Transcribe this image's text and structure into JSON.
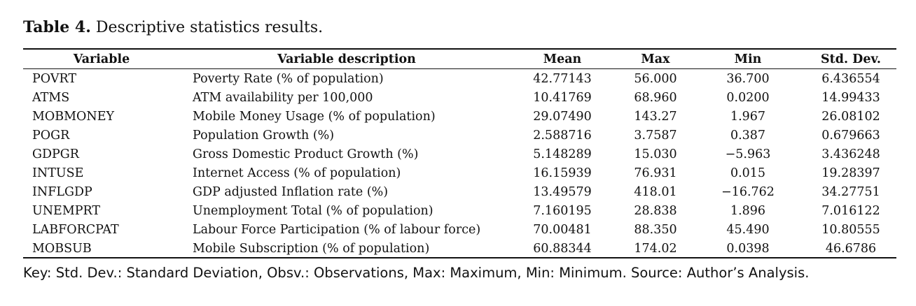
{
  "title": {
    "label": "Table 4.",
    "text": "Descriptive statistics results."
  },
  "table": {
    "header": [
      "Variable",
      "Variable description",
      "Mean",
      "Max",
      "Min",
      "Std. Dev."
    ],
    "rows": [
      [
        "POVRT",
        "Poverty Rate (% of population)",
        "42.77143",
        "56.000",
        "36.700",
        "6.436554"
      ],
      [
        "ATMS",
        "ATM availability per 100,000",
        "10.41769",
        "68.960",
        "0.0200",
        "14.99433"
      ],
      [
        "MOBMONEY",
        "Mobile Money Usage (% of population)",
        "29.07490",
        "143.27",
        "1.967",
        "26.08102"
      ],
      [
        "POGR",
        "Population Growth (%)",
        "2.588716",
        "3.7587",
        "0.387",
        "0.679663"
      ],
      [
        "GDPGR",
        "Gross Domestic Product Growth (%)",
        "5.148289",
        "15.030",
        "−5.963",
        "3.436248"
      ],
      [
        "INTUSE",
        "Internet Access (% of population)",
        "16.15939",
        "76.931",
        "0.015",
        "19.28397"
      ],
      [
        "INFLGDP",
        "GDP adjusted Inflation rate (%)",
        "13.49579",
        "418.01",
        "−16.762",
        "34.27751"
      ],
      [
        "UNEMPRT",
        "Unemployment Total (% of population)",
        "7.160195",
        "28.838",
        "1.896",
        "7.016122"
      ],
      [
        "LABFORCPAT",
        "Labour Force Participation (% of labour force)",
        "70.00481",
        "88.350",
        "45.490",
        "10.80555"
      ],
      [
        "MOBSUB",
        "Mobile Subscription (% of population)",
        "60.88344",
        "174.02",
        "0.0398",
        "46.6786"
      ]
    ]
  },
  "note": "Key: Std. Dev.: Standard Deviation, Obsv.: Observations, Max: Maximum, Min: Minimum. Source: Author’s Analysis."
}
